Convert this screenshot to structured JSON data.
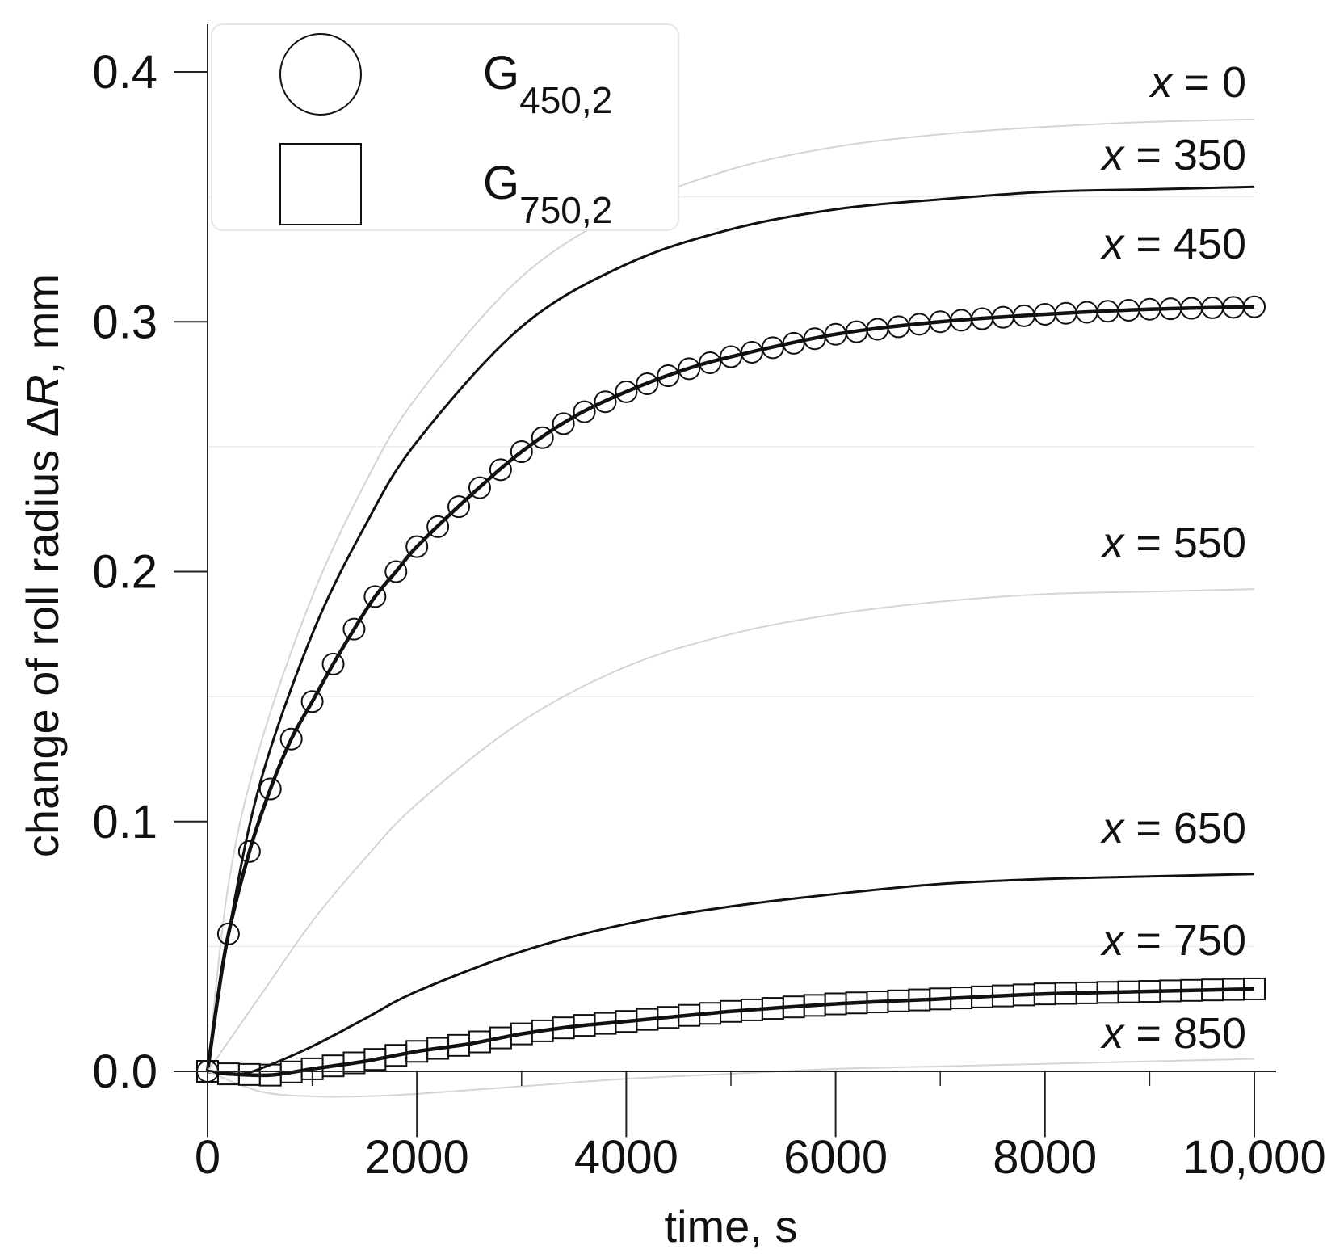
{
  "chart_data": {
    "type": "line",
    "xlabel": "time, s",
    "ylabel_prefix": "change of roll radius ",
    "ylabel_delta": "Δ",
    "ylabel_var": "R",
    "ylabel_suffix": ", mm",
    "xlim": [
      0,
      10000
    ],
    "ylim": [
      -0.015,
      0.42
    ],
    "x_ticks": [
      0,
      2000,
      4000,
      6000,
      8000,
      10000
    ],
    "x_tick_labels": [
      "0",
      "2000",
      "4000",
      "6000",
      "8000",
      "10,000"
    ],
    "y_ticks": [
      0.0,
      0.1,
      0.2,
      0.3,
      0.4
    ],
    "y_tick_labels": [
      "0.0",
      "0.1",
      "0.2",
      "0.3",
      "0.4"
    ],
    "legend": [
      {
        "marker": "circle",
        "label_main": "G",
        "label_sub": "450,2"
      },
      {
        "marker": "square",
        "label_main": "G",
        "label_sub": "750,2"
      }
    ],
    "series": [
      {
        "name": "x = 0",
        "x_value": "0",
        "style": "light",
        "final": 0.381,
        "points": [
          [
            0,
            0
          ],
          [
            200,
            0.075
          ],
          [
            500,
            0.13
          ],
          [
            1000,
            0.19
          ],
          [
            1500,
            0.235
          ],
          [
            2000,
            0.27
          ],
          [
            3000,
            0.318
          ],
          [
            4000,
            0.345
          ],
          [
            5000,
            0.361
          ],
          [
            6000,
            0.37
          ],
          [
            7000,
            0.375
          ],
          [
            8000,
            0.378
          ],
          [
            9000,
            0.38
          ],
          [
            10000,
            0.381
          ]
        ]
      },
      {
        "name": "x = 350",
        "x_value": "350",
        "style": "medium",
        "final": 0.354,
        "points": [
          [
            0,
            0
          ],
          [
            200,
            0.055
          ],
          [
            500,
            0.115
          ],
          [
            1000,
            0.175
          ],
          [
            1500,
            0.218
          ],
          [
            2000,
            0.252
          ],
          [
            3000,
            0.298
          ],
          [
            4000,
            0.323
          ],
          [
            5000,
            0.337
          ],
          [
            6000,
            0.345
          ],
          [
            7000,
            0.349
          ],
          [
            8000,
            0.352
          ],
          [
            9000,
            0.353
          ],
          [
            10000,
            0.354
          ]
        ]
      },
      {
        "name": "x = 450",
        "x_value": "450",
        "style": "bold",
        "final": 0.306,
        "points": [
          [
            0,
            0
          ],
          [
            100,
            0.03
          ],
          [
            200,
            0.055
          ],
          [
            400,
            0.088
          ],
          [
            600,
            0.113
          ],
          [
            800,
            0.133
          ],
          [
            1000,
            0.148
          ],
          [
            1200,
            0.163
          ],
          [
            1400,
            0.177
          ],
          [
            1600,
            0.19
          ],
          [
            1800,
            0.2
          ],
          [
            2000,
            0.21
          ],
          [
            2500,
            0.23
          ],
          [
            3000,
            0.248
          ],
          [
            3500,
            0.262
          ],
          [
            4000,
            0.272
          ],
          [
            4500,
            0.28
          ],
          [
            5000,
            0.286
          ],
          [
            6000,
            0.295
          ],
          [
            7000,
            0.3
          ],
          [
            8000,
            0.303
          ],
          [
            9000,
            0.305
          ],
          [
            10000,
            0.306
          ]
        ]
      },
      {
        "name": "x = 550",
        "x_value": "550",
        "style": "light",
        "final": 0.193,
        "points": [
          [
            0,
            0
          ],
          [
            500,
            0.03
          ],
          [
            1000,
            0.06
          ],
          [
            1500,
            0.085
          ],
          [
            2000,
            0.107
          ],
          [
            3000,
            0.14
          ],
          [
            4000,
            0.162
          ],
          [
            5000,
            0.175
          ],
          [
            6000,
            0.183
          ],
          [
            7000,
            0.188
          ],
          [
            8000,
            0.191
          ],
          [
            9000,
            0.192
          ],
          [
            10000,
            0.193
          ]
        ]
      },
      {
        "name": "x = 650",
        "x_value": "650",
        "style": "medium",
        "final": 0.079,
        "points": [
          [
            0,
            0
          ],
          [
            300,
            -0.001
          ],
          [
            500,
            0.001
          ],
          [
            1000,
            0.01
          ],
          [
            1500,
            0.021
          ],
          [
            2000,
            0.032
          ],
          [
            3000,
            0.048
          ],
          [
            4000,
            0.059
          ],
          [
            5000,
            0.066
          ],
          [
            6000,
            0.071
          ],
          [
            7000,
            0.075
          ],
          [
            8000,
            0.077
          ],
          [
            9000,
            0.078
          ],
          [
            10000,
            0.079
          ]
        ]
      },
      {
        "name": "x = 750",
        "x_value": "750",
        "style": "bold",
        "final": 0.033,
        "points": [
          [
            0,
            0
          ],
          [
            200,
            -0.001
          ],
          [
            600,
            -0.0015
          ],
          [
            1000,
            0.001
          ],
          [
            1500,
            0.004
          ],
          [
            2000,
            0.008
          ],
          [
            2500,
            0.011
          ],
          [
            3000,
            0.015
          ],
          [
            3500,
            0.018
          ],
          [
            4000,
            0.02
          ],
          [
            5000,
            0.024
          ],
          [
            6000,
            0.027
          ],
          [
            7000,
            0.029
          ],
          [
            8000,
            0.031
          ],
          [
            9000,
            0.032
          ],
          [
            10000,
            0.033
          ]
        ]
      },
      {
        "name": "x = 850",
        "x_value": "850",
        "style": "light",
        "final": 0.005,
        "points": [
          [
            0,
            0
          ],
          [
            500,
            -0.008
          ],
          [
            1000,
            -0.01
          ],
          [
            1500,
            -0.01
          ],
          [
            2000,
            -0.009
          ],
          [
            3000,
            -0.006
          ],
          [
            4000,
            -0.003
          ],
          [
            5000,
            -0.001
          ],
          [
            6000,
            0.001
          ],
          [
            7000,
            0.002
          ],
          [
            8000,
            0.003
          ],
          [
            9000,
            0.004
          ],
          [
            10000,
            0.005
          ]
        ]
      }
    ],
    "markers": [
      {
        "series": "x = 450",
        "marker": "circle",
        "x": [
          0,
          200,
          400,
          600,
          800,
          1000,
          1200,
          1400,
          1600,
          1800,
          2000,
          2200,
          2400,
          2600,
          2800,
          3000,
          3200,
          3400,
          3600,
          3800,
          4000,
          4200,
          4400,
          4600,
          4800,
          5000,
          5200,
          5400,
          5600,
          5800,
          6000,
          6200,
          6400,
          6600,
          6800,
          7000,
          7200,
          7400,
          7600,
          7800,
          8000,
          8200,
          8400,
          8600,
          8800,
          9000,
          9200,
          9400,
          9600,
          9800,
          10000
        ]
      },
      {
        "series": "x = 750",
        "marker": "square",
        "x": [
          0,
          200,
          400,
          600,
          800,
          1000,
          1200,
          1400,
          1600,
          1800,
          2000,
          2200,
          2400,
          2600,
          2800,
          3000,
          3200,
          3400,
          3600,
          3800,
          4000,
          4200,
          4400,
          4600,
          4800,
          5000,
          5200,
          5400,
          5600,
          5800,
          6000,
          6200,
          6400,
          6600,
          6800,
          7000,
          7200,
          7400,
          7600,
          7800,
          8000,
          8200,
          8400,
          8600,
          8800,
          9000,
          9200,
          9400,
          9600,
          9800,
          10000
        ]
      }
    ],
    "curve_label_prefix": "x",
    "curve_label_eq": " = "
  }
}
